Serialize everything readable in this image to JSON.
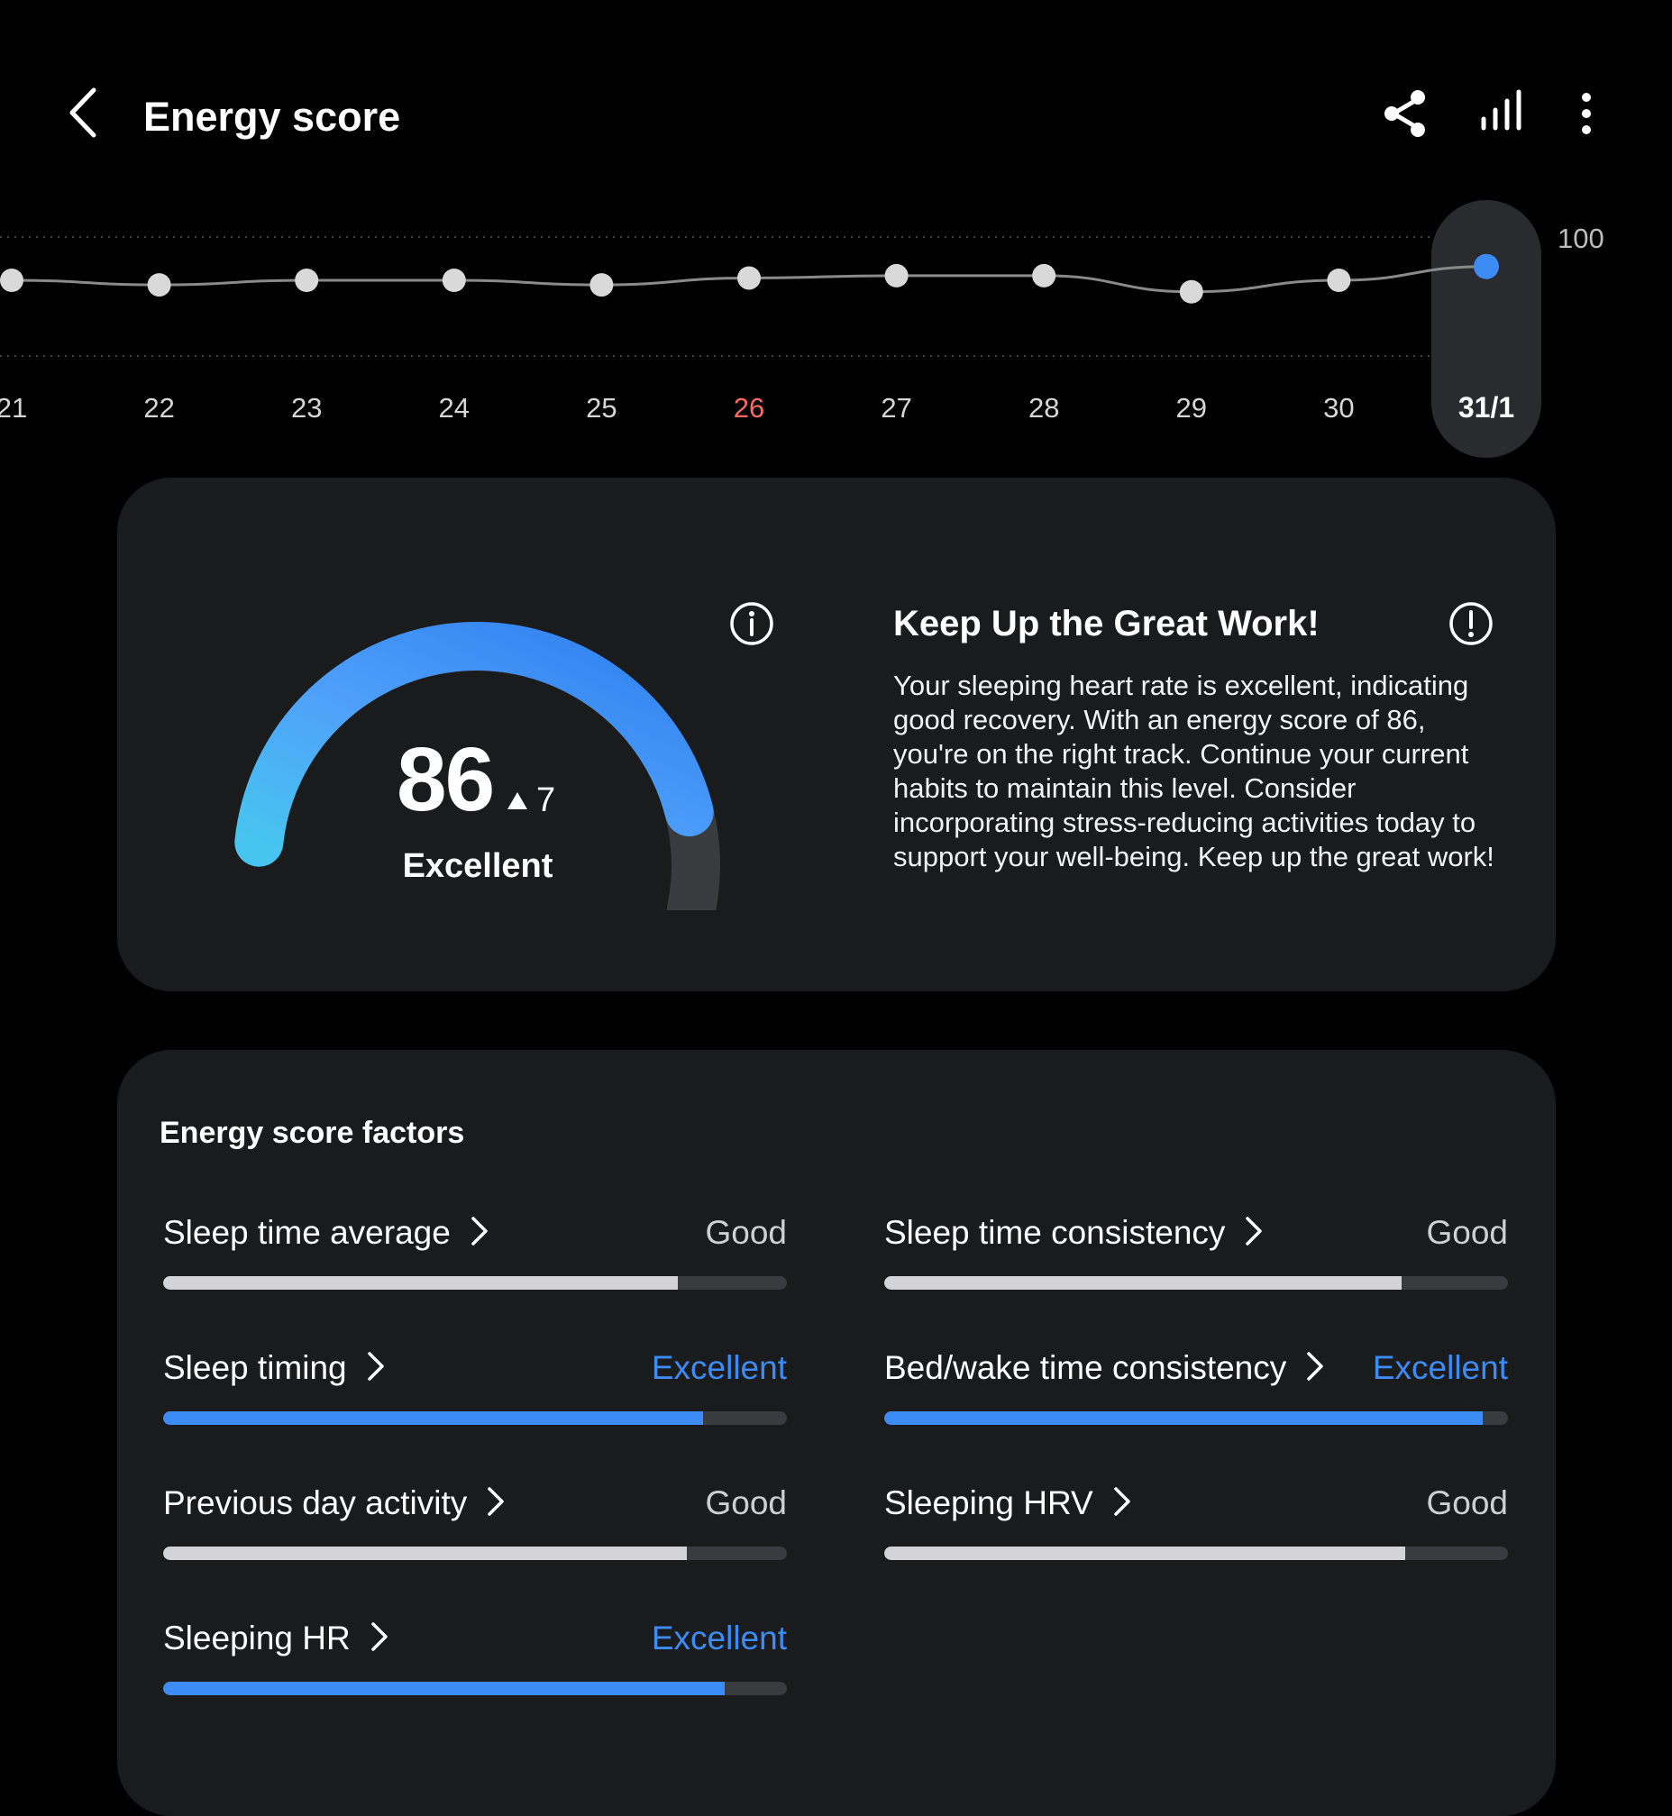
{
  "header": {
    "title": "Energy score",
    "back_icon": "back-arrow-icon",
    "share_icon": "share-icon",
    "stats_icon": "bar-chart-icon",
    "more_icon": "more-vertical-icon"
  },
  "trend": {
    "max_label": "100",
    "selected_color": "#3d8cf5",
    "point_color": "#d9d9d9",
    "weekend_color": "#ff6b5e",
    "days": [
      {
        "label": "21",
        "score": 80
      },
      {
        "label": "22",
        "score": 78
      },
      {
        "label": "23",
        "score": 80
      },
      {
        "label": "24",
        "score": 80
      },
      {
        "label": "25",
        "score": 78
      },
      {
        "label": "26",
        "score": 81,
        "weekend": true
      },
      {
        "label": "27",
        "score": 82
      },
      {
        "label": "28",
        "score": 82
      },
      {
        "label": "29",
        "score": 75
      },
      {
        "label": "30",
        "score": 80
      },
      {
        "label": "31/1",
        "score": 86,
        "selected": true
      }
    ]
  },
  "summary": {
    "score": "86",
    "score_fraction": 0.86,
    "delta": "7",
    "delta_icon": "arrow-up-icon",
    "status": "Excellent",
    "info_icon": "info-icon",
    "gauge_start_color": "#47c4ef",
    "gauge_end_color": "#2f7ff0",
    "gauge_track_color": "#3a3b3e"
  },
  "insight": {
    "title": "Keep Up the Great Work!",
    "alert_icon": "alert-icon",
    "body": "Your sleeping heart rate is excellent, indicating good recovery. With an energy score of 86, you're on the right track. Continue your current habits to maintain this level. Consider incorporating stress-reducing activities today to support your well-being. Keep up the great work!"
  },
  "factors": {
    "title": "Energy score factors",
    "good_color": "#d4d4d8",
    "excellent_color": "#3d8cf5",
    "items": [
      {
        "label": "Sleep time average",
        "rating": "Good",
        "level": 0.825
      },
      {
        "label": "Sleep time consistency",
        "rating": "Good",
        "level": 0.83
      },
      {
        "label": "Sleep timing",
        "rating": "Excellent",
        "level": 0.865
      },
      {
        "label": "Bed/wake time consistency",
        "rating": "Excellent",
        "level": 0.96
      },
      {
        "label": "Previous day activity",
        "rating": "Good",
        "level": 0.84
      },
      {
        "label": "Sleeping HRV",
        "rating": "Good",
        "level": 0.835
      },
      {
        "label": "Sleeping HR",
        "rating": "Excellent",
        "level": 0.9
      }
    ]
  }
}
